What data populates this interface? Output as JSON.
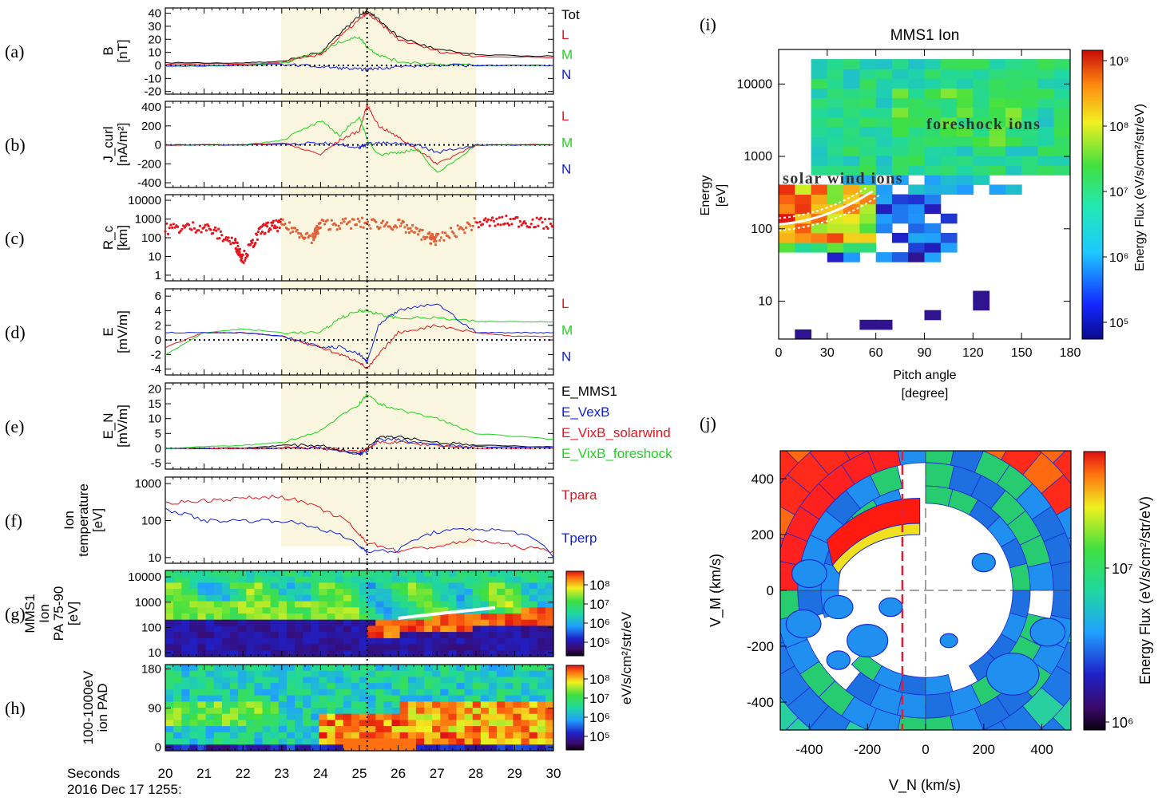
{
  "colors": {
    "red": "#e8141c",
    "green": "#1fd31f",
    "blue": "#1020d8",
    "black": "#000000",
    "shade": "#fbf6df",
    "white": "#ffffff"
  },
  "left_panels": {
    "x_axis": {
      "label": "Seconds",
      "date_label": "2016 Dec 17 1255:",
      "ticks": [
        "20",
        "21",
        "22",
        "23",
        "24",
        "25",
        "26",
        "27",
        "28",
        "29",
        "30"
      ],
      "range": [
        20,
        30
      ],
      "shaded_interval": [
        23,
        28
      ],
      "event_marker_time": 25.2
    },
    "panels": [
      {
        "letter": "(a)",
        "ylabel": [
          "B",
          "[nT]"
        ],
        "yticks": [
          "40",
          "30",
          "20",
          "10",
          "0",
          "-10",
          "-20"
        ],
        "legend": [
          {
            "text": "Tot",
            "color": "black"
          },
          {
            "text": "L",
            "color": "red"
          },
          {
            "text": "M",
            "color": "green"
          },
          {
            "text": "N",
            "color": "blue"
          }
        ]
      },
      {
        "letter": "(b)",
        "ylabel": [
          "J_curl",
          "[nA/m²]"
        ],
        "yticks": [
          "400",
          "200",
          "0",
          "-200",
          "-400"
        ],
        "legend": [
          {
            "text": "L",
            "color": "red"
          },
          {
            "text": "M",
            "color": "green"
          },
          {
            "text": "N",
            "color": "blue"
          }
        ]
      },
      {
        "letter": "(c)",
        "ylabel": [
          "R_c",
          "[km]"
        ],
        "yticks": [
          "10000",
          "1000",
          "100",
          "10",
          "1"
        ],
        "legend": []
      },
      {
        "letter": "(d)",
        "ylabel": [
          "E",
          "[mV/m]"
        ],
        "yticks": [
          "6",
          "4",
          "2",
          "0",
          "-2",
          "-4"
        ],
        "legend": [
          {
            "text": "L",
            "color": "red"
          },
          {
            "text": "M",
            "color": "green"
          },
          {
            "text": "N",
            "color": "blue"
          }
        ]
      },
      {
        "letter": "(e)",
        "ylabel": [
          "E_N",
          "[mV/m]"
        ],
        "yticks": [
          "20",
          "15",
          "10",
          "5",
          "0",
          "-5"
        ],
        "legend": [
          {
            "text": "E_MMS1",
            "color": "black"
          },
          {
            "text": "E_VexB",
            "color": "blue"
          },
          {
            "text": "E_VixB_solarwind",
            "color": "red"
          },
          {
            "text": "E_VixB_foreshock",
            "color": "green"
          }
        ]
      },
      {
        "letter": "(f)",
        "ylabel": [
          "Ion",
          "temperature",
          "[eV]"
        ],
        "yticks": [
          "1000",
          "100",
          "10"
        ],
        "legend": [
          {
            "text": "Tpara",
            "color": "red"
          },
          {
            "text": "Tperp",
            "color": "blue"
          }
        ]
      },
      {
        "letter": "(g)",
        "ylabel": [
          "MMS1",
          "Ion",
          "PA 75-90",
          "[eV]"
        ],
        "yticks": [
          "10000",
          "1000",
          "100",
          "10"
        ],
        "colorbar_ticks": [
          "10⁸",
          "10⁷",
          "10⁶",
          "10⁵"
        ],
        "legend": []
      },
      {
        "letter": "(h)",
        "ylabel": [
          "100-1000eV",
          "ion PAD"
        ],
        "yticks": [
          "180",
          "90",
          "0"
        ],
        "colorbar_ticks": [
          "10⁸",
          "10⁷",
          "10⁶",
          "10⁵"
        ],
        "legend": []
      }
    ],
    "colorbar_label": "eV/s/cm²/str/eV"
  },
  "panel_i": {
    "letter": "(i)",
    "title": "MMS1 Ion",
    "xlabel": [
      "Pitch angle",
      "[degree]"
    ],
    "ylabel": [
      "Energy",
      "[eV]"
    ],
    "xticks": [
      "0",
      "30",
      "60",
      "90",
      "120",
      "150",
      "180"
    ],
    "yticks": [
      "10000",
      "1000",
      "100",
      "10"
    ],
    "annotations": [
      "foreshock ions",
      "solar wind ions"
    ],
    "colorbar_label": "Energy Flux (eV/s/cm²/str/eV)",
    "colorbar_ticks": [
      "10⁹",
      "10⁸",
      "10⁷",
      "10⁶",
      "10⁵"
    ]
  },
  "panel_j": {
    "letter": "(j)",
    "xlabel": "V_N (km/s)",
    "ylabel": "V_M (km/s)",
    "xticks": [
      "-400",
      "-200",
      "0",
      "200",
      "400"
    ],
    "yticks": [
      "400",
      "200",
      "0",
      "-200",
      "-400"
    ],
    "colorbar_label": "Energy Flux (eV/s/cm²/str/eV)",
    "colorbar_ticks": [
      "10⁷",
      "10⁶"
    ]
  },
  "chart_data": [
    {
      "type": "line",
      "panel": "(a)",
      "x": [
        20,
        22,
        23,
        24,
        24.5,
        25,
        25.2,
        25.5,
        26,
        27,
        28,
        30
      ],
      "series": [
        {
          "name": "Tot",
          "values": [
            2,
            2,
            3,
            10,
            25,
            38,
            42,
            35,
            22,
            12,
            8,
            7
          ]
        },
        {
          "name": "L",
          "values": [
            1,
            1,
            2,
            8,
            22,
            35,
            40,
            33,
            20,
            11,
            7,
            6
          ]
        },
        {
          "name": "M",
          "values": [
            -1,
            0,
            2,
            10,
            18,
            22,
            14,
            8,
            3,
            1,
            0,
            0
          ]
        },
        {
          "name": "N",
          "values": [
            0,
            0,
            1,
            -1,
            -2,
            -3,
            -3,
            -2,
            -1,
            0,
            0,
            0
          ]
        }
      ]
    },
    {
      "type": "line",
      "panel": "(b)",
      "x": [
        20,
        22,
        23,
        24,
        24.5,
        25,
        25.2,
        25.5,
        26,
        26.5,
        27,
        28,
        30
      ],
      "series": [
        {
          "name": "L",
          "values": [
            0,
            0,
            20,
            -100,
            50,
            150,
            420,
            200,
            80,
            -50,
            -200,
            0,
            0
          ]
        },
        {
          "name": "M",
          "values": [
            0,
            0,
            50,
            250,
            100,
            300,
            50,
            -100,
            -80,
            -50,
            -300,
            0,
            0
          ]
        },
        {
          "name": "N",
          "values": [
            0,
            0,
            5,
            20,
            10,
            -30,
            10,
            20,
            10,
            0,
            -80,
            0,
            0
          ]
        }
      ]
    },
    {
      "type": "scatter",
      "panel": "(c)",
      "x": [
        20,
        21,
        21.8,
        22,
        22.5,
        23,
        23.8,
        24,
        25,
        26,
        26.8,
        27,
        28,
        29,
        30
      ],
      "series": [
        {
          "name": "",
          "values": [
            300,
            400,
            50,
            8,
            300,
            500,
            100,
            500,
            600,
            500,
            100,
            80,
            600,
            800,
            500
          ]
        }
      ]
    },
    {
      "type": "line",
      "panel": "(d)",
      "x": [
        20,
        21,
        22,
        23,
        24,
        24.5,
        25,
        25.2,
        25.5,
        26,
        27,
        28,
        29,
        30
      ],
      "series": [
        {
          "name": "L",
          "values": [
            -1,
            1,
            1,
            0.5,
            -1,
            -2,
            -3,
            -4,
            -2,
            1,
            2,
            1,
            0.5,
            0.5
          ]
        },
        {
          "name": "M",
          "values": [
            -2,
            1,
            1.5,
            1,
            1,
            3,
            4,
            4,
            3.5,
            3,
            3,
            2.5,
            2.5,
            2.5
          ]
        },
        {
          "name": "N",
          "values": [
            1,
            1,
            1,
            0.5,
            -1,
            -1,
            -2,
            -3,
            2,
            4,
            5,
            1,
            1,
            1
          ]
        }
      ]
    },
    {
      "type": "line",
      "panel": "(e)",
      "x": [
        20,
        22,
        23,
        24,
        25,
        25.2,
        25.5,
        26,
        27,
        28,
        30
      ],
      "series": [
        {
          "name": "E_MMS1",
          "values": [
            0,
            0,
            1,
            1,
            -2,
            0,
            4,
            4,
            2,
            1,
            0.5
          ]
        },
        {
          "name": "E_VexB",
          "values": [
            0,
            0,
            0,
            0,
            -2,
            -1,
            3,
            3,
            1,
            0.5,
            0.5
          ]
        },
        {
          "name": "E_VixB_solarwind",
          "values": [
            0,
            0,
            0,
            0,
            -1,
            0,
            2,
            2,
            1,
            0,
            0
          ]
        },
        {
          "name": "E_VixB_foreshock",
          "values": [
            0,
            1,
            2,
            6,
            15,
            18,
            15,
            13,
            10,
            5,
            3
          ]
        }
      ]
    },
    {
      "type": "line",
      "panel": "(f)",
      "x": [
        20,
        21,
        22,
        23,
        24,
        25,
        25.2,
        26,
        27,
        28,
        29,
        30
      ],
      "series": [
        {
          "name": "Tpara",
          "values": [
            300,
            350,
            400,
            450,
            200,
            40,
            25,
            15,
            20,
            30,
            20,
            15
          ]
        },
        {
          "name": "Tperp",
          "values": [
            200,
            100,
            100,
            100,
            60,
            20,
            15,
            15,
            50,
            60,
            50,
            10
          ]
        }
      ]
    },
    {
      "type": "heatmap",
      "panel": "(g)",
      "x_range": [
        20,
        30
      ],
      "y_range_eV": [
        10,
        10000
      ],
      "scale": "log"
    },
    {
      "type": "heatmap",
      "panel": "(h)",
      "x_range": [
        20,
        30
      ],
      "y_range_deg": [
        0,
        180
      ]
    },
    {
      "type": "heatmap",
      "panel": "(i)",
      "x_range_deg": [
        0,
        180
      ],
      "y_range_eV": [
        3,
        30000
      ],
      "scale": "log"
    },
    {
      "type": "heatmap",
      "panel": "(j)",
      "x_range_kms": [
        -500,
        500
      ],
      "y_range_kms": [
        -500,
        500
      ]
    }
  ]
}
